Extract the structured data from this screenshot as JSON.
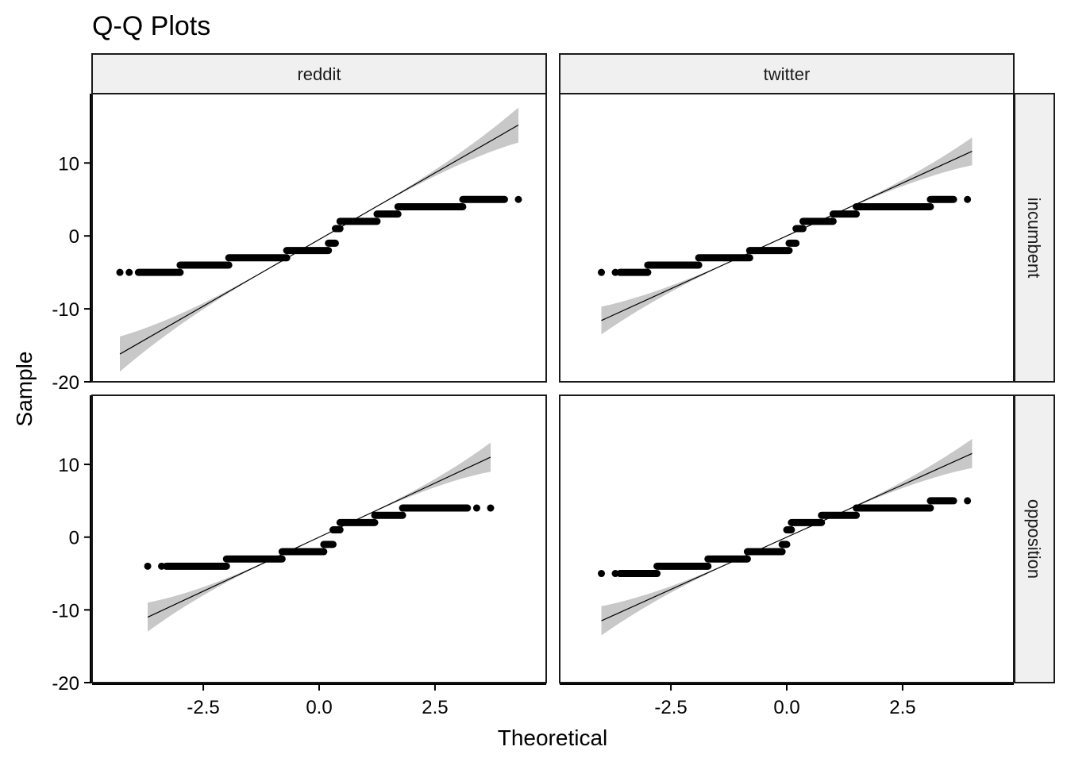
{
  "chart_data": {
    "type": "scatter",
    "title": "Q-Q Plots",
    "xlabel": "Theoretical",
    "ylabel": "Sample",
    "xlim": [
      -4.9,
      4.9
    ],
    "ylim": [
      -20,
      19.5
    ],
    "x_ticks": [
      {
        "value": -2.5,
        "label": "-2.5"
      },
      {
        "value": 0.0,
        "label": "0.0"
      },
      {
        "value": 2.5,
        "label": "2.5"
      }
    ],
    "y_ticks": [
      {
        "value": 10,
        "label": "10"
      },
      {
        "value": 0,
        "label": "0"
      },
      {
        "value": -10,
        "label": "-10"
      },
      {
        "value": -20,
        "label": "-20"
      }
    ],
    "facet_columns": [
      "reddit",
      "twitter"
    ],
    "facet_rows": [
      "incumbent",
      "opposition"
    ],
    "grid": false,
    "legend": "none",
    "colors": {
      "points": "#000000",
      "line": "#000000",
      "band": "#bebebe",
      "strip": "#f0f0f0"
    },
    "panels": [
      {
        "col": "reddit",
        "row": "incumbent",
        "reference_line": {
          "x": [
            -4.3,
            4.3
          ],
          "y": [
            -16.2,
            15.2
          ]
        },
        "band_halfwidth": [
          2.4,
          0.0,
          2.4
        ],
        "steps": [
          {
            "y": -5,
            "x_start": -3.9,
            "x_end": -3.0
          },
          {
            "y": -4,
            "x_start": -3.0,
            "x_end": -1.95
          },
          {
            "y": -3,
            "x_start": -1.95,
            "x_end": -0.7
          },
          {
            "y": -2,
            "x_start": -0.7,
            "x_end": 0.2
          },
          {
            "y": -1,
            "x_start": 0.2,
            "x_end": 0.35
          },
          {
            "y": 1,
            "x_start": 0.35,
            "x_end": 0.45
          },
          {
            "y": 2,
            "x_start": 0.45,
            "x_end": 1.25
          },
          {
            "y": 3,
            "x_start": 1.25,
            "x_end": 1.7
          },
          {
            "y": 4,
            "x_start": 1.7,
            "x_end": 3.1
          },
          {
            "y": 5,
            "x_start": 3.1,
            "x_end": 4.0
          }
        ],
        "outliers": [
          {
            "x": -4.3,
            "y": -5
          },
          {
            "x": -4.1,
            "y": -5
          },
          {
            "x": 4.3,
            "y": 5
          }
        ]
      },
      {
        "col": "twitter",
        "row": "incumbent",
        "reference_line": {
          "x": [
            -4.0,
            4.0
          ],
          "y": [
            -11.6,
            11.6
          ]
        },
        "band_halfwidth": [
          1.9,
          0.0,
          1.9
        ],
        "steps": [
          {
            "y": -5,
            "x_start": -3.6,
            "x_end": -3.0
          },
          {
            "y": -4,
            "x_start": -3.0,
            "x_end": -1.9
          },
          {
            "y": -3,
            "x_start": -1.9,
            "x_end": -0.8
          },
          {
            "y": -2,
            "x_start": -0.8,
            "x_end": 0.05
          },
          {
            "y": -1,
            "x_start": 0.05,
            "x_end": 0.2
          },
          {
            "y": 1,
            "x_start": 0.2,
            "x_end": 0.35
          },
          {
            "y": 2,
            "x_start": 0.35,
            "x_end": 1.0
          },
          {
            "y": 3,
            "x_start": 1.0,
            "x_end": 1.5
          },
          {
            "y": 4,
            "x_start": 1.5,
            "x_end": 3.1
          },
          {
            "y": 5,
            "x_start": 3.1,
            "x_end": 3.6
          }
        ],
        "outliers": [
          {
            "x": -4.0,
            "y": -5
          },
          {
            "x": -3.7,
            "y": -5
          },
          {
            "x": 3.9,
            "y": 5
          }
        ]
      },
      {
        "col": "reddit",
        "row": "opposition",
        "reference_line": {
          "x": [
            -3.7,
            3.7
          ],
          "y": [
            -11.0,
            11.0
          ]
        },
        "band_halfwidth": [
          2.0,
          0.0,
          2.0
        ],
        "steps": [
          {
            "y": -4,
            "x_start": -3.3,
            "x_end": -2.0
          },
          {
            "y": -3,
            "x_start": -2.0,
            "x_end": -0.8
          },
          {
            "y": -2,
            "x_start": -0.8,
            "x_end": 0.1
          },
          {
            "y": -1,
            "x_start": 0.1,
            "x_end": 0.3
          },
          {
            "y": 1,
            "x_start": 0.3,
            "x_end": 0.45
          },
          {
            "y": 2,
            "x_start": 0.45,
            "x_end": 1.2
          },
          {
            "y": 3,
            "x_start": 1.2,
            "x_end": 1.8
          },
          {
            "y": 4,
            "x_start": 1.8,
            "x_end": 3.2
          }
        ],
        "outliers": [
          {
            "x": -3.7,
            "y": -4
          },
          {
            "x": -3.4,
            "y": -4
          },
          {
            "x": 3.4,
            "y": 4
          },
          {
            "x": 3.7,
            "y": 4
          }
        ]
      },
      {
        "col": "twitter",
        "row": "opposition",
        "reference_line": {
          "x": [
            -4.0,
            4.0
          ],
          "y": [
            -11.5,
            11.5
          ]
        },
        "band_halfwidth": [
          2.0,
          0.0,
          2.0
        ],
        "steps": [
          {
            "y": -5,
            "x_start": -3.6,
            "x_end": -2.8
          },
          {
            "y": -4,
            "x_start": -2.8,
            "x_end": -1.7
          },
          {
            "y": -3,
            "x_start": -1.7,
            "x_end": -0.85
          },
          {
            "y": -2,
            "x_start": -0.85,
            "x_end": -0.1
          },
          {
            "y": -1,
            "x_start": -0.1,
            "x_end": 0.0
          },
          {
            "y": 1,
            "x_start": 0.0,
            "x_end": 0.1
          },
          {
            "y": 2,
            "x_start": 0.1,
            "x_end": 0.75
          },
          {
            "y": 3,
            "x_start": 0.75,
            "x_end": 1.5
          },
          {
            "y": 4,
            "x_start": 1.5,
            "x_end": 3.1
          },
          {
            "y": 5,
            "x_start": 3.1,
            "x_end": 3.6
          }
        ],
        "outliers": [
          {
            "x": -4.0,
            "y": -5
          },
          {
            "x": -3.7,
            "y": -5
          },
          {
            "x": 3.9,
            "y": 5
          }
        ]
      }
    ]
  }
}
